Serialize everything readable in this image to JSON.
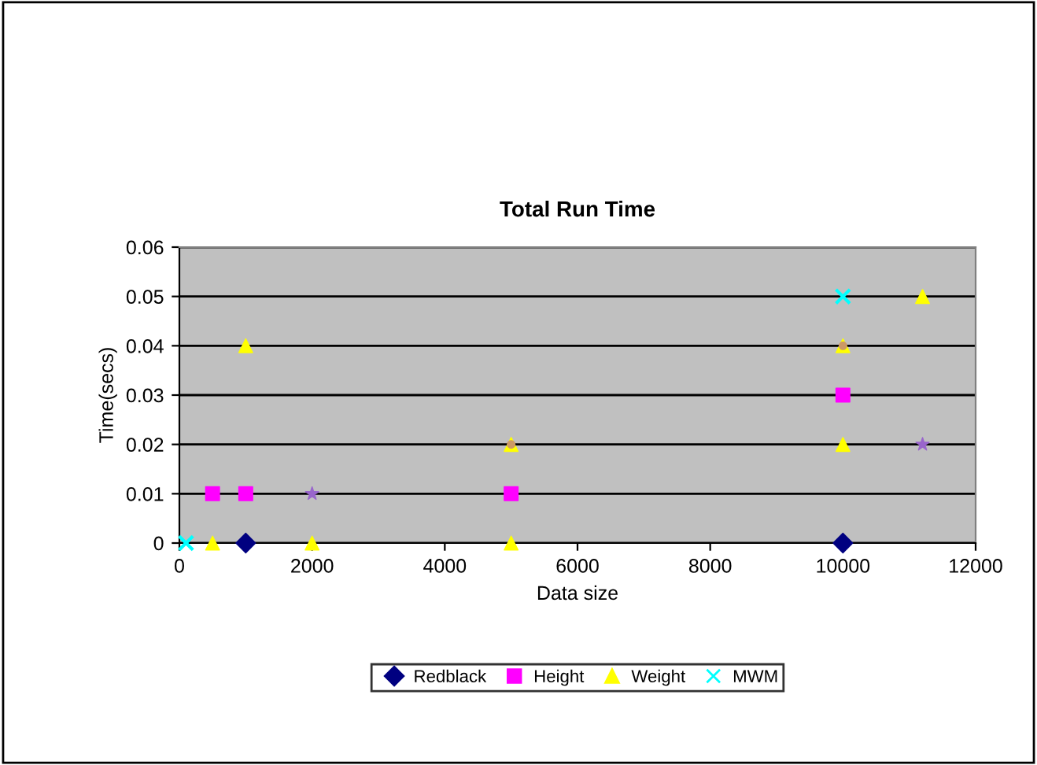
{
  "chart_data": {
    "type": "scatter",
    "title": "Total Run Time",
    "xlabel": "Data size",
    "ylabel": "Time(secs)",
    "xlim": [
      0,
      12000
    ],
    "xticks": [
      0,
      2000,
      4000,
      6000,
      8000,
      10000,
      12000
    ],
    "ylim": [
      0,
      0.06
    ],
    "yticks": [
      {
        "value": 0,
        "label": "0"
      },
      {
        "value": 0.01,
        "label": "0.01"
      },
      {
        "value": 0.02,
        "label": "0.02"
      },
      {
        "value": 0.03,
        "label": "0.03"
      },
      {
        "value": 0.04,
        "label": "0.04"
      },
      {
        "value": 0.05,
        "label": "0.05"
      },
      {
        "value": 0.06,
        "label": "0.06"
      }
    ],
    "grid": "y",
    "legend": "bottom",
    "series": [
      {
        "name": "Redblack",
        "color": "#000080",
        "marker": "diamond",
        "x": [
          1000,
          10000
        ],
        "values": [
          0,
          0
        ]
      },
      {
        "name": "Height",
        "color": "#ff00ff",
        "marker": "square",
        "x": [
          500,
          1000,
          5000,
          10000
        ],
        "values": [
          0.01,
          0.01,
          0.01,
          0.03
        ]
      },
      {
        "name": "Weight",
        "color": "#ffff00",
        "marker": "triangle",
        "x": [
          500,
          1000,
          2000,
          5000,
          5000,
          10000,
          10000,
          11200
        ],
        "values": [
          0,
          0.04,
          0,
          0,
          0.02,
          0.04,
          0.02,
          0.05
        ]
      },
      {
        "name": "MWM",
        "color": "#00ffff",
        "marker": "cross",
        "x": [
          100,
          10000
        ],
        "values": [
          0,
          0.05
        ]
      },
      {
        "color": "#9966cc",
        "marker": "star",
        "x": [
          2000,
          11200
        ],
        "values": [
          0.01,
          0.02
        ]
      },
      {
        "color": "#cc9966",
        "marker": "circle",
        "x": [
          5000,
          10000
        ],
        "values": [
          0.02,
          0.04
        ]
      }
    ]
  }
}
